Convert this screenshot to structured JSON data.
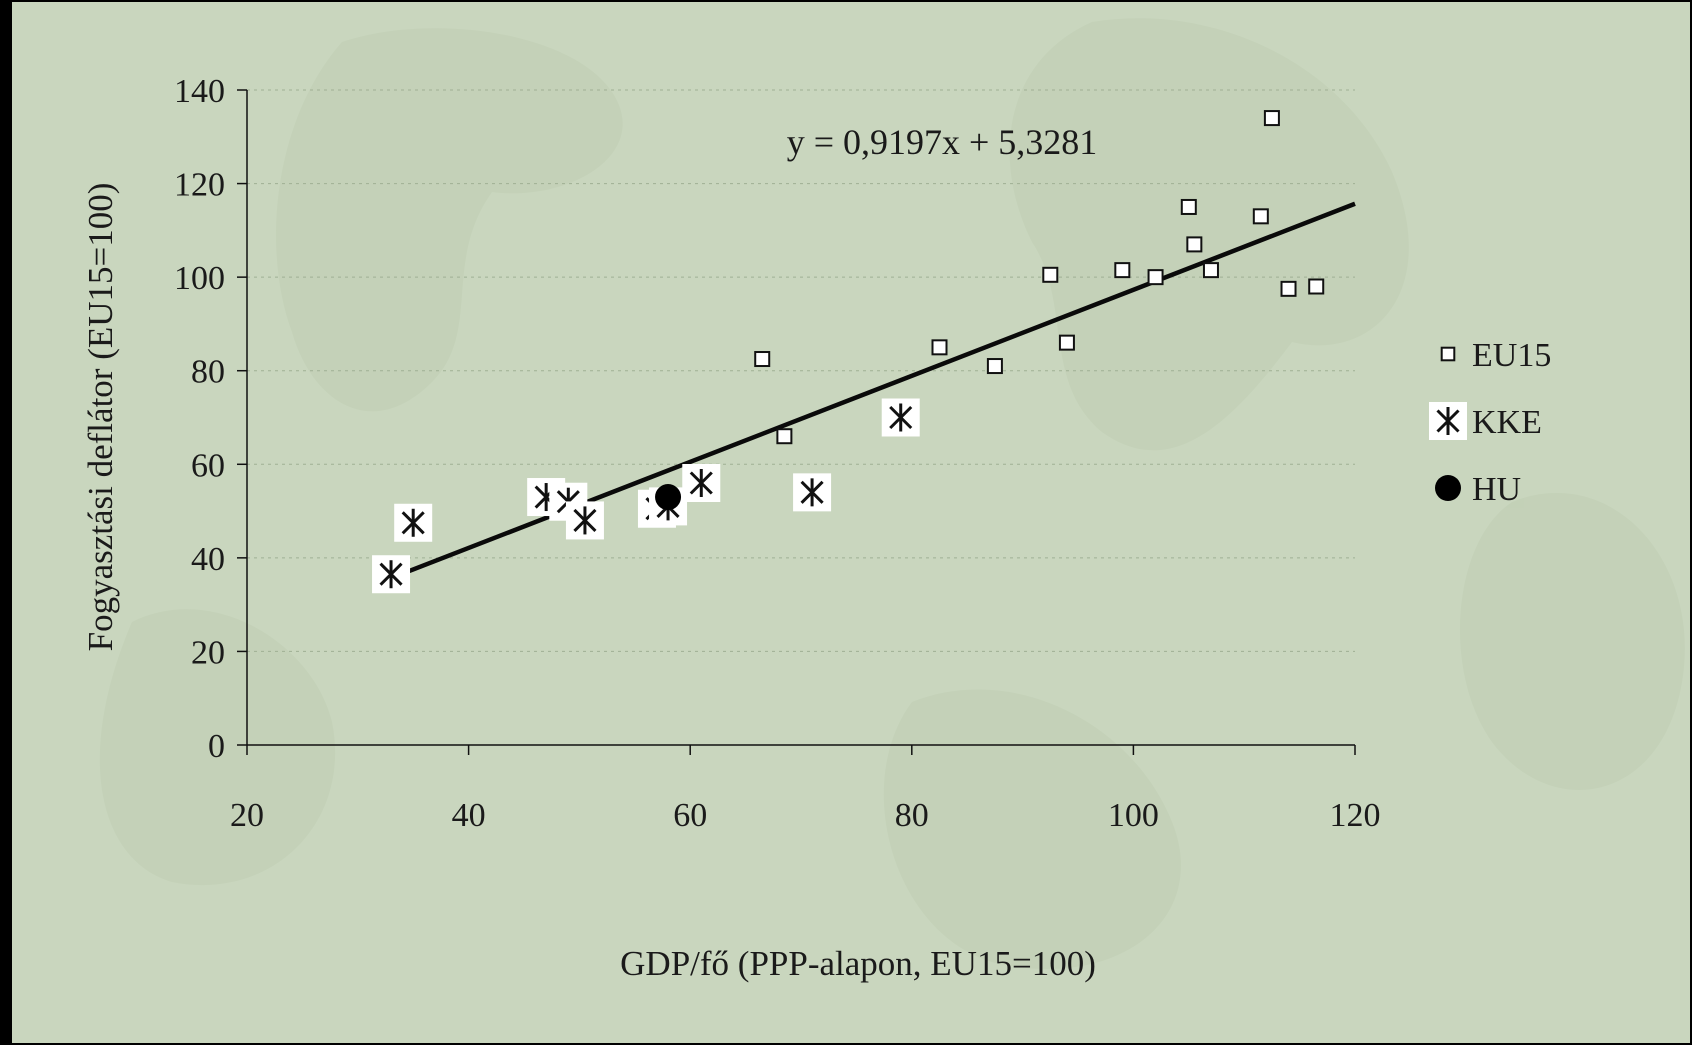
{
  "chart_data": {
    "type": "scatter",
    "xlabel": "GDP/fő (PPP-alapon, EU15=100)",
    "ylabel": "Fogyasztási deflátor (EU15=100)",
    "xlim": [
      20,
      120
    ],
    "ylim": [
      0,
      140
    ],
    "xticks": [
      20,
      40,
      60,
      80,
      100,
      120
    ],
    "yticks": [
      0,
      20,
      40,
      60,
      80,
      100,
      120,
      140
    ],
    "grid": "horizontal dashed",
    "legend_position": "right",
    "trendline": {
      "equation": "y = 0,9197x + 5,3281",
      "slope": 0.9197,
      "intercept": 5.3281,
      "x_range": [
        33,
        120
      ]
    },
    "series": [
      {
        "name": "EU15",
        "marker": "square",
        "points": [
          [
            66.5,
            82.5
          ],
          [
            68.5,
            66
          ],
          [
            82.5,
            85
          ],
          [
            87.5,
            81
          ],
          [
            92.5,
            100.5
          ],
          [
            94,
            86
          ],
          [
            99,
            101.5
          ],
          [
            102,
            100
          ],
          [
            105,
            115
          ],
          [
            105.5,
            107
          ],
          [
            107,
            101.5
          ],
          [
            111.5,
            113
          ],
          [
            112.5,
            134
          ],
          [
            114,
            97.5
          ],
          [
            116.5,
            98
          ]
        ]
      },
      {
        "name": "KKE",
        "marker": "asterisk",
        "points": [
          [
            33,
            36.5
          ],
          [
            35,
            47.5
          ],
          [
            47,
            53
          ],
          [
            49,
            52
          ],
          [
            50.5,
            48
          ],
          [
            57,
            50.5
          ],
          [
            58,
            51
          ],
          [
            61,
            56
          ],
          [
            71,
            54
          ],
          [
            79,
            70
          ]
        ]
      },
      {
        "name": "HU",
        "marker": "circle",
        "points": [
          [
            58,
            53
          ]
        ]
      }
    ]
  }
}
